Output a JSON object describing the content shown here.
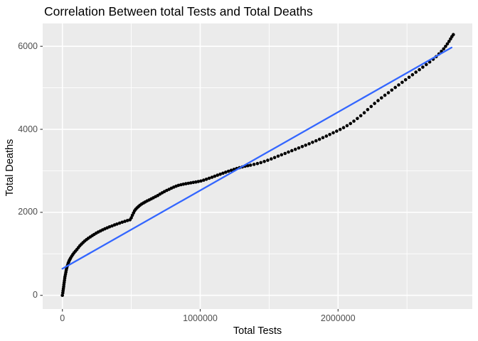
{
  "chart": {
    "title": "Correlation Between total Tests and Total Deaths",
    "xlabel": "Total Tests",
    "ylabel": "Total Deaths"
  },
  "chart_data": {
    "type": "scatter",
    "title": "Correlation Between total Tests and Total Deaths",
    "xlabel": "Total Tests",
    "ylabel": "Total Deaths",
    "legend": "none",
    "grid": true,
    "theme": "ggplot-gray",
    "xlim": [
      -143000,
      2974000
    ],
    "ylim": [
      -330,
      6551
    ],
    "x_ticks": {
      "major": [
        0,
        1000000,
        2000000
      ],
      "minor": [
        500000,
        1500000,
        2500000
      ],
      "labels": [
        "0",
        "1000000",
        "2000000"
      ]
    },
    "y_ticks": {
      "major": [
        0,
        2000,
        4000,
        6000
      ],
      "minor": [
        1000,
        3000,
        5000
      ],
      "labels": [
        "0",
        "2000",
        "4000",
        "6000"
      ]
    },
    "colors": {
      "panel_bg": "#EBEBEB",
      "grid_major": "#FFFFFF",
      "grid_minor": "#FFFFFF",
      "point": "#000000",
      "trend_line": "#3366FF",
      "tick_text": "#4D4D4D",
      "tick_mark": "#333333",
      "text": "#000000",
      "background": "#FFFFFF"
    },
    "series": [
      {
        "name": "observations",
        "type": "scatter",
        "points": [
          [
            0,
            0
          ],
          [
            3000,
            60
          ],
          [
            5000,
            110
          ],
          [
            7000,
            160
          ],
          [
            9000,
            210
          ],
          [
            11000,
            260
          ],
          [
            13000,
            310
          ],
          [
            15000,
            360
          ],
          [
            17000,
            410
          ],
          [
            19000,
            455
          ],
          [
            22000,
            505
          ],
          [
            25000,
            555
          ],
          [
            28000,
            605
          ],
          [
            31000,
            650
          ],
          [
            34000,
            690
          ],
          [
            38000,
            730
          ],
          [
            42000,
            770
          ],
          [
            46000,
            805
          ],
          [
            50000,
            840
          ],
          [
            55000,
            870
          ],
          [
            60000,
            900
          ],
          [
            68000,
            945
          ],
          [
            76000,
            985
          ],
          [
            85000,
            1025
          ],
          [
            95000,
            1065
          ],
          [
            105000,
            1105
          ],
          [
            116000,
            1150
          ],
          [
            127000,
            1195
          ],
          [
            138000,
            1235
          ],
          [
            150000,
            1272
          ],
          [
            162000,
            1308
          ],
          [
            175000,
            1342
          ],
          [
            188000,
            1375
          ],
          [
            202000,
            1408
          ],
          [
            216000,
            1438
          ],
          [
            230000,
            1468
          ],
          [
            245000,
            1498
          ],
          [
            260000,
            1525
          ],
          [
            276000,
            1552
          ],
          [
            292000,
            1578
          ],
          [
            308000,
            1602
          ],
          [
            325000,
            1626
          ],
          [
            342000,
            1650
          ],
          [
            360000,
            1673
          ],
          [
            378000,
            1696
          ],
          [
            396000,
            1718
          ],
          [
            415000,
            1740
          ],
          [
            434000,
            1761
          ],
          [
            453000,
            1782
          ],
          [
            472000,
            1802
          ],
          [
            490000,
            1820
          ],
          [
            500000,
            1870
          ],
          [
            508000,
            1930
          ],
          [
            516000,
            1985
          ],
          [
            524000,
            2035
          ],
          [
            532000,
            2075
          ],
          [
            542000,
            2110
          ],
          [
            552000,
            2140
          ],
          [
            563000,
            2170
          ],
          [
            575000,
            2200
          ],
          [
            588000,
            2225
          ],
          [
            601000,
            2250
          ],
          [
            615000,
            2275
          ],
          [
            630000,
            2300
          ],
          [
            645000,
            2325
          ],
          [
            660000,
            2350
          ],
          [
            676000,
            2378
          ],
          [
            692000,
            2406
          ],
          [
            708000,
            2440
          ],
          [
            724000,
            2470
          ],
          [
            740000,
            2500
          ],
          [
            757000,
            2528
          ],
          [
            774000,
            2555
          ],
          [
            791000,
            2582
          ],
          [
            808000,
            2607
          ],
          [
            825000,
            2630
          ],
          [
            842000,
            2650
          ],
          [
            860000,
            2665
          ],
          [
            878000,
            2678
          ],
          [
            896000,
            2690
          ],
          [
            914000,
            2700
          ],
          [
            932000,
            2710
          ],
          [
            950000,
            2720
          ],
          [
            968000,
            2730
          ],
          [
            986000,
            2742
          ],
          [
            1005000,
            2755
          ],
          [
            1025000,
            2775
          ],
          [
            1045000,
            2798
          ],
          [
            1065000,
            2822
          ],
          [
            1085000,
            2846
          ],
          [
            1105000,
            2870
          ],
          [
            1125000,
            2894
          ],
          [
            1145000,
            2918
          ],
          [
            1165000,
            2942
          ],
          [
            1185000,
            2966
          ],
          [
            1205000,
            2990
          ],
          [
            1225000,
            3013
          ],
          [
            1245000,
            3035
          ],
          [
            1265000,
            3056
          ],
          [
            1285000,
            3076
          ],
          [
            1305000,
            3094
          ],
          [
            1325000,
            3110
          ],
          [
            1345000,
            3124
          ],
          [
            1365000,
            3136
          ],
          [
            1390000,
            3155
          ],
          [
            1415000,
            3175
          ],
          [
            1440000,
            3198
          ],
          [
            1465000,
            3225
          ],
          [
            1490000,
            3255
          ],
          [
            1515000,
            3287
          ],
          [
            1540000,
            3320
          ],
          [
            1565000,
            3353
          ],
          [
            1590000,
            3386
          ],
          [
            1615000,
            3419
          ],
          [
            1640000,
            3452
          ],
          [
            1665000,
            3485
          ],
          [
            1690000,
            3518
          ],
          [
            1715000,
            3551
          ],
          [
            1740000,
            3584
          ],
          [
            1765000,
            3618
          ],
          [
            1790000,
            3652
          ],
          [
            1815000,
            3687
          ],
          [
            1840000,
            3723
          ],
          [
            1865000,
            3760
          ],
          [
            1890000,
            3798
          ],
          [
            1915000,
            3837
          ],
          [
            1940000,
            3876
          ],
          [
            1965000,
            3916
          ],
          [
            1990000,
            3956
          ],
          [
            2015000,
            3997
          ],
          [
            2040000,
            4040
          ],
          [
            2065000,
            4088
          ],
          [
            2090000,
            4140
          ],
          [
            2115000,
            4197
          ],
          [
            2140000,
            4260
          ],
          [
            2165000,
            4328
          ],
          [
            2190000,
            4400
          ],
          [
            2215000,
            4475
          ],
          [
            2240000,
            4550
          ],
          [
            2265000,
            4623
          ],
          [
            2290000,
            4692
          ],
          [
            2315000,
            4757
          ],
          [
            2340000,
            4820
          ],
          [
            2365000,
            4882
          ],
          [
            2390000,
            4945
          ],
          [
            2415000,
            5008
          ],
          [
            2440000,
            5070
          ],
          [
            2465000,
            5132
          ],
          [
            2490000,
            5193
          ],
          [
            2515000,
            5254
          ],
          [
            2540000,
            5315
          ],
          [
            2565000,
            5376
          ],
          [
            2590000,
            5437
          ],
          [
            2615000,
            5498
          ],
          [
            2640000,
            5560
          ],
          [
            2665000,
            5623
          ],
          [
            2690000,
            5688
          ],
          [
            2712000,
            5752
          ],
          [
            2732000,
            5816
          ],
          [
            2750000,
            5878
          ],
          [
            2766000,
            5938
          ],
          [
            2780000,
            5998
          ],
          [
            2793000,
            6058
          ],
          [
            2805000,
            6118
          ],
          [
            2816000,
            6178
          ],
          [
            2826000,
            6235
          ],
          [
            2836000,
            6283
          ]
        ]
      },
      {
        "name": "linear-fit",
        "type": "line",
        "points": [
          [
            0,
            640
          ],
          [
            2824000,
            5970
          ]
        ]
      }
    ]
  }
}
